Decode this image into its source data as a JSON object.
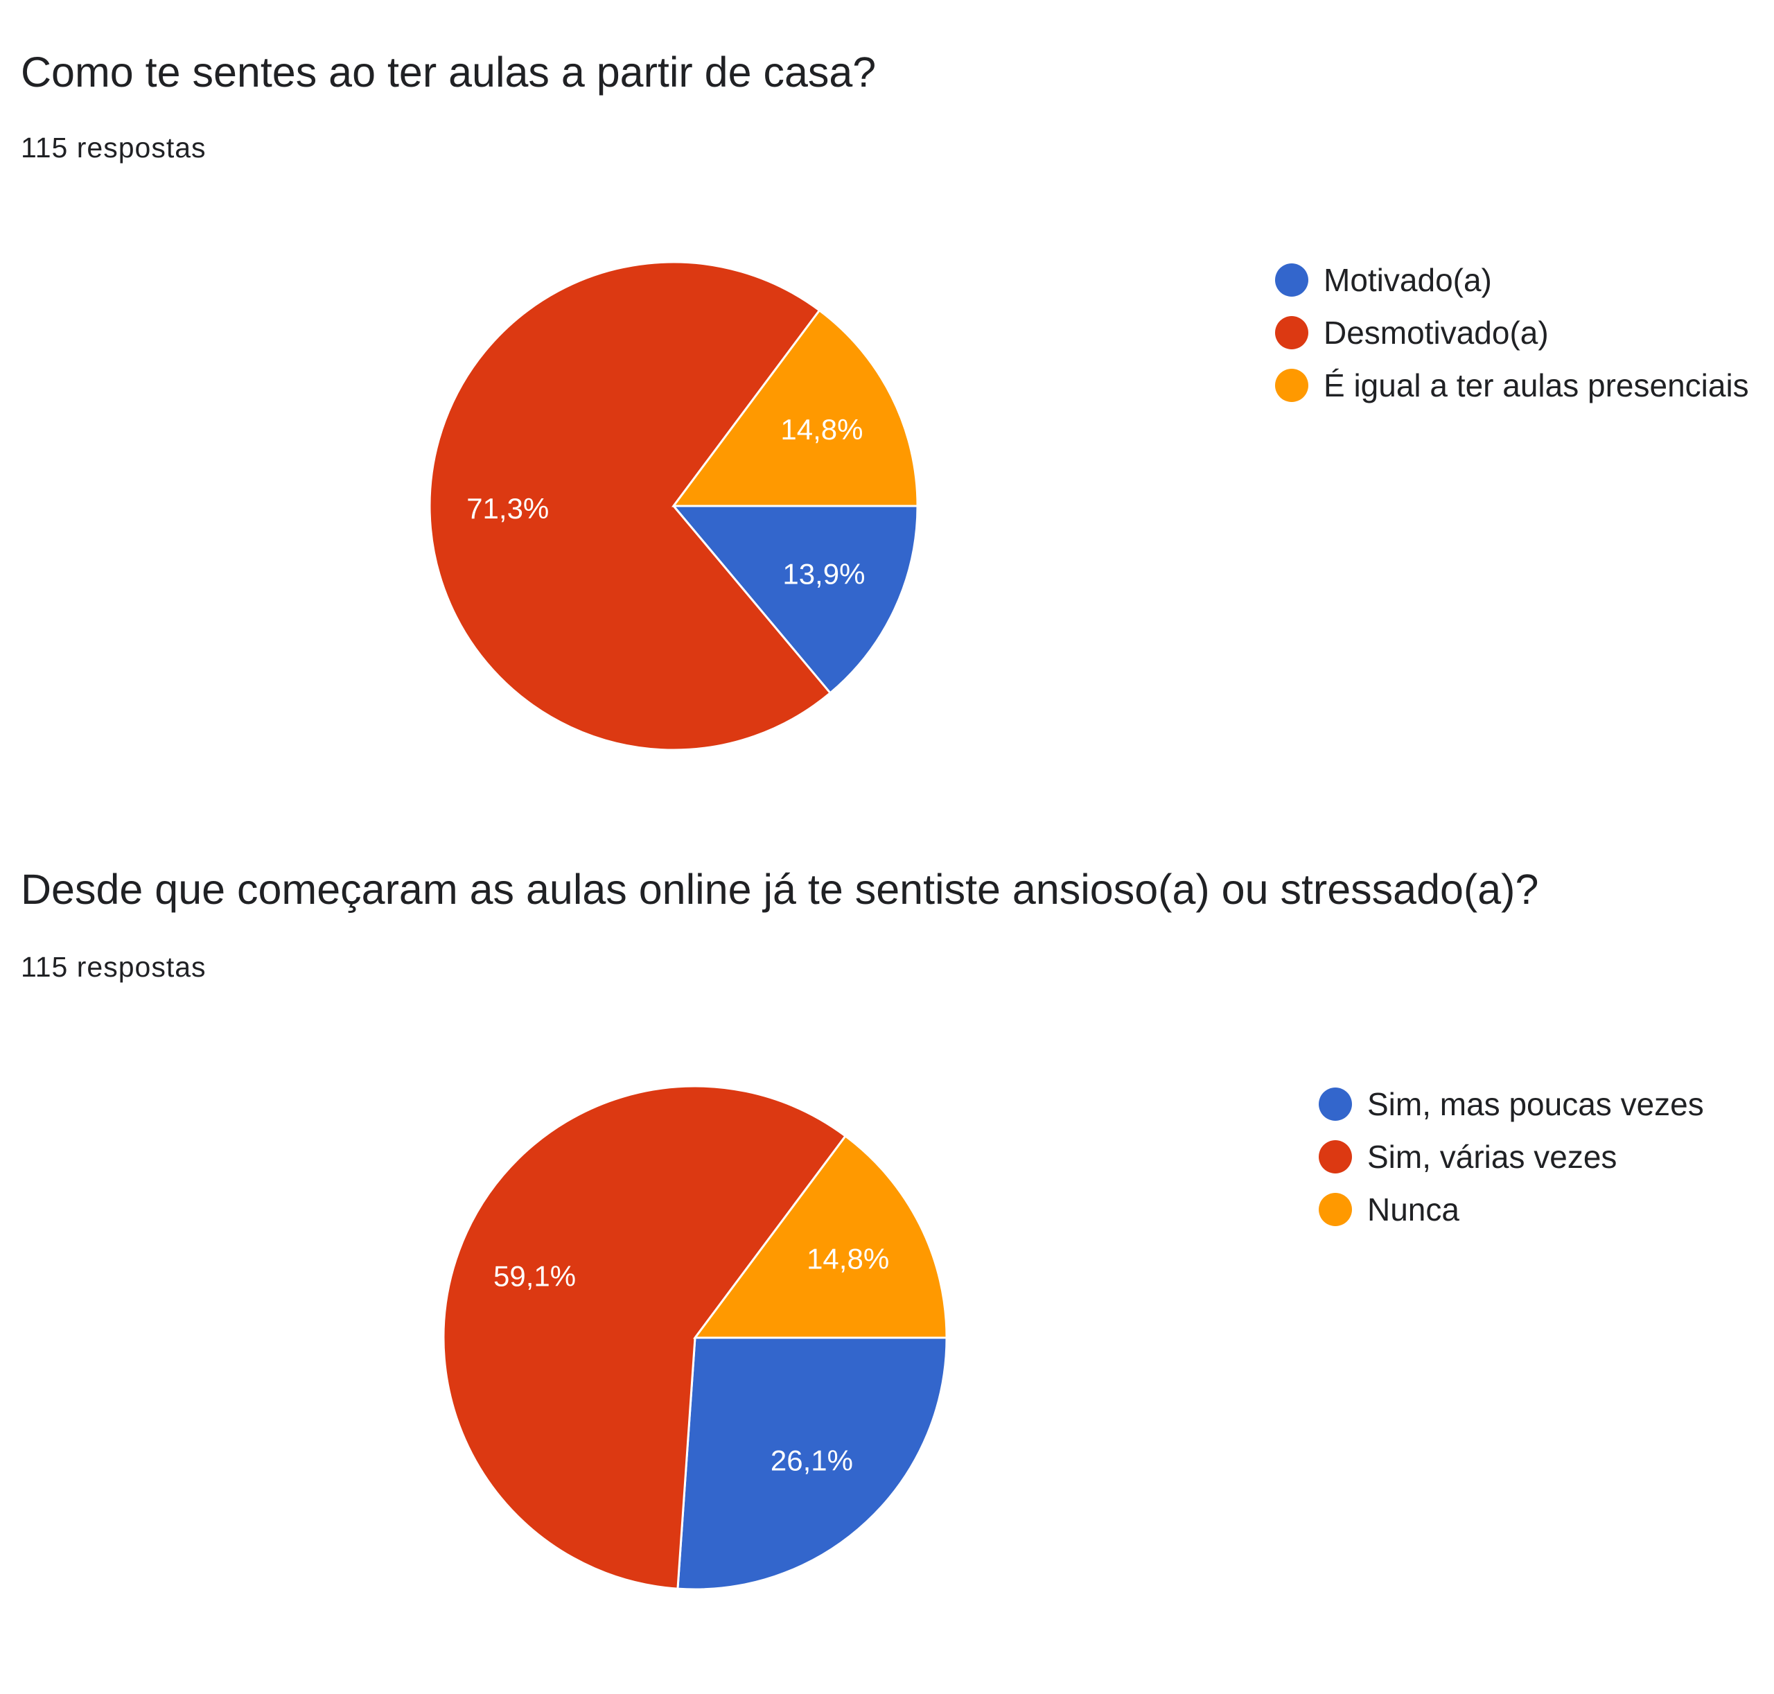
{
  "chart_data": [
    {
      "type": "pie",
      "title": "Como te sentes ao ter aulas a partir de casa?",
      "subtitle": "115 respostas",
      "legend_position": "right",
      "slices": [
        {
          "label": "Motivado(a)",
          "value": 13.9,
          "display": "13,9%",
          "color": "#3366cc"
        },
        {
          "label": "Desmotivado(a)",
          "value": 71.3,
          "display": "71,3%",
          "color": "#dc3912"
        },
        {
          "label": "É igual a ter aulas presenciais",
          "value": 14.8,
          "display": "14,8%",
          "color": "#ff9900"
        }
      ]
    },
    {
      "type": "pie",
      "title": "Desde que começaram as aulas online já te sentiste ansioso(a) ou stressado(a)?",
      "subtitle": "115 respostas",
      "legend_position": "right",
      "slices": [
        {
          "label": "Sim, mas poucas vezes",
          "value": 26.1,
          "display": "26,1%",
          "color": "#3366cc"
        },
        {
          "label": "Sim, várias vezes",
          "value": 59.1,
          "display": "59,1%",
          "color": "#dc3912"
        },
        {
          "label": "Nunca",
          "value": 14.8,
          "display": "14,8%",
          "color": "#ff9900"
        }
      ]
    }
  ]
}
